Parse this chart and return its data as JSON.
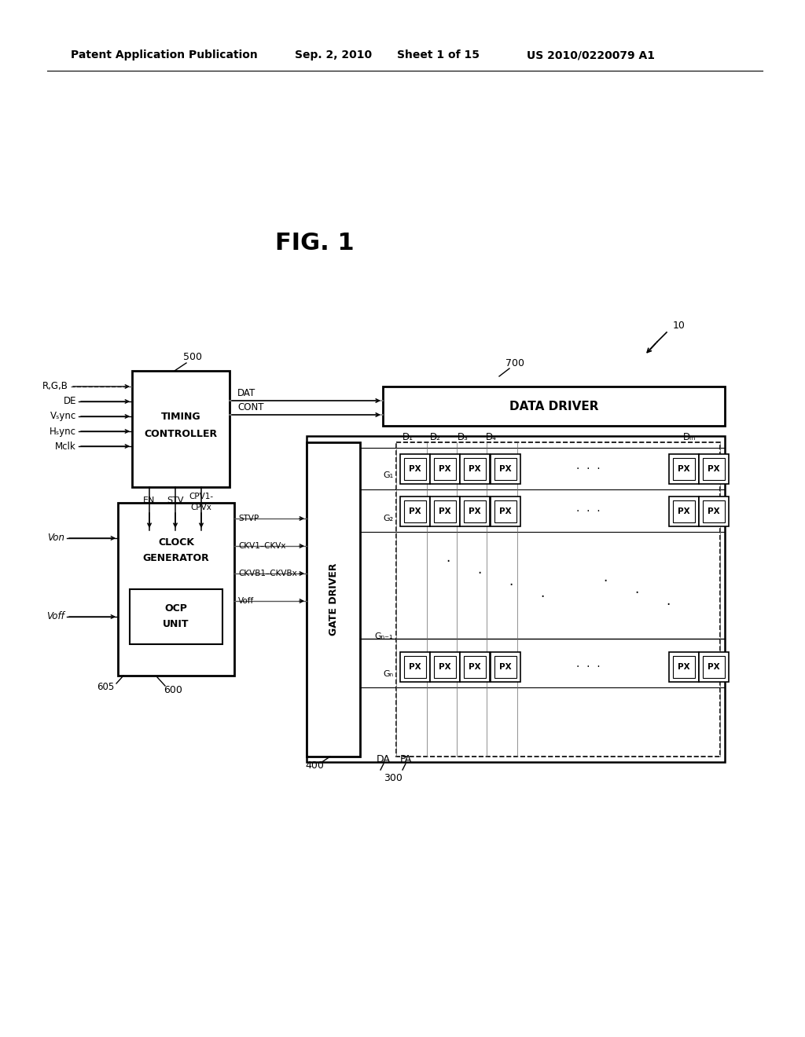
{
  "background_color": "#ffffff",
  "header_text": "Patent Application Publication",
  "header_date": "Sep. 2, 2010",
  "header_sheet": "Sheet 1 of 15",
  "header_patent": "US 2010/0220079 A1",
  "fig_label": "FIG. 1"
}
